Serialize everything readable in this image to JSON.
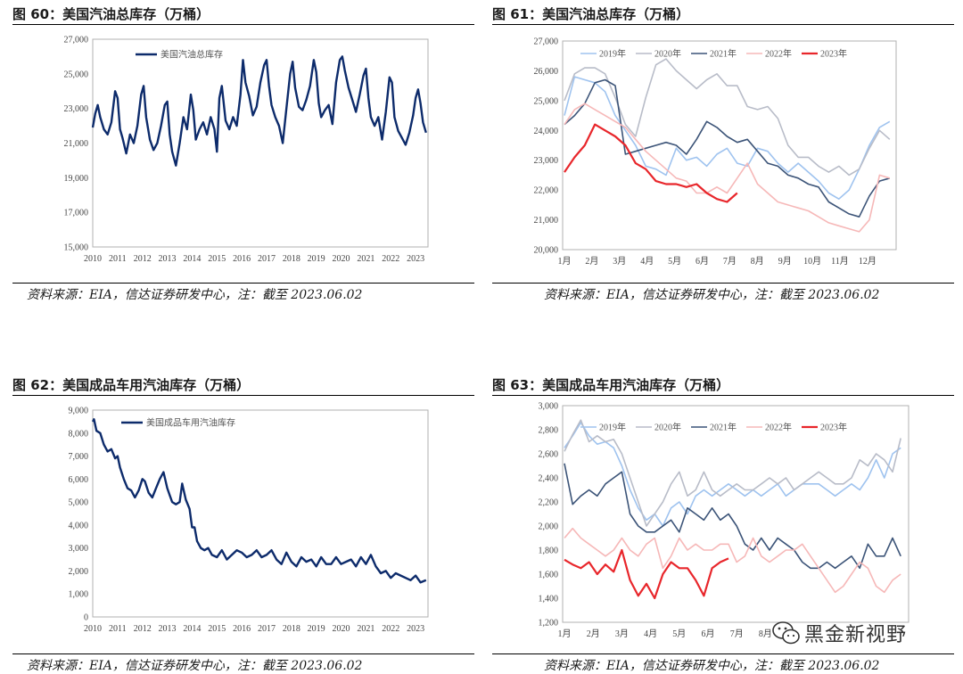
{
  "colors": {
    "navy": "#0d2b6b",
    "s2019": "#9fc3ef",
    "s2020": "#b8bcc8",
    "s2021": "#3c5478",
    "s2022": "#f6b8b8",
    "s2023": "#e8262b",
    "frame": "#b0b0b0"
  },
  "panels": [
    {
      "title": "图 60：美国汽油总库存（万桶）",
      "source": "资料来源：EIA，信达证券研发中心，注：截至 2023.06.02"
    },
    {
      "title": "图 61：美国汽油总库存（万桶）",
      "source": "资料来源：EIA，信达证券研发中心，注：截至 2023.06.02"
    },
    {
      "title": "图 62：美国成品车用汽油库存（万桶）",
      "source": "资料来源：EIA，信达证券研发中心，注：截至 2023.06.02"
    },
    {
      "title": "图 63：美国成品车用汽油库存（万桶）",
      "source": "资料来源：EIA，信达证券研发中心，注：截至 2023.06.02"
    }
  ],
  "watermark": "黑金新视野",
  "chart_data": [
    {
      "type": "line",
      "title": "图 60：美国汽油总库存（万桶）",
      "legend": "美国汽油总库存",
      "ylim": [
        15000,
        27000
      ],
      "yticks": [
        "27,000",
        "25,000",
        "23,000",
        "21,000",
        "19,000",
        "17,000",
        "15,000"
      ],
      "xticks": [
        "2010",
        "2011",
        "2012",
        "2013",
        "2014",
        "2015",
        "2016",
        "2017",
        "2018",
        "2019",
        "2020",
        "2021",
        "2022",
        "2023"
      ],
      "xlim": [
        2010,
        2023.5
      ],
      "series": [
        {
          "name": "美国汽油总库存",
          "x": [
            2010.0,
            2010.1,
            2010.2,
            2010.3,
            2010.45,
            2010.6,
            2010.75,
            2010.9,
            2011.0,
            2011.1,
            2011.2,
            2011.35,
            2011.5,
            2011.65,
            2011.8,
            2011.95,
            2012.05,
            2012.15,
            2012.3,
            2012.45,
            2012.6,
            2012.75,
            2012.9,
            2013.0,
            2013.1,
            2013.2,
            2013.35,
            2013.5,
            2013.65,
            2013.8,
            2013.95,
            2014.05,
            2014.15,
            2014.3,
            2014.45,
            2014.6,
            2014.75,
            2014.9,
            2015.0,
            2015.1,
            2015.2,
            2015.35,
            2015.5,
            2015.65,
            2015.8,
            2015.95,
            2016.05,
            2016.15,
            2016.3,
            2016.45,
            2016.6,
            2016.75,
            2016.9,
            2017.0,
            2017.1,
            2017.2,
            2017.35,
            2017.5,
            2017.65,
            2017.8,
            2017.95,
            2018.05,
            2018.15,
            2018.3,
            2018.45,
            2018.6,
            2018.75,
            2018.9,
            2019.0,
            2019.1,
            2019.2,
            2019.35,
            2019.5,
            2019.65,
            2019.8,
            2019.95,
            2020.05,
            2020.15,
            2020.3,
            2020.45,
            2020.6,
            2020.75,
            2020.9,
            2021.0,
            2021.1,
            2021.2,
            2021.35,
            2021.5,
            2021.65,
            2021.8,
            2021.95,
            2022.05,
            2022.15,
            2022.3,
            2022.45,
            2022.6,
            2022.75,
            2022.9,
            2023.0,
            2023.1,
            2023.2,
            2023.3,
            2023.42
          ],
          "values": [
            21900,
            22700,
            23200,
            22500,
            21800,
            21500,
            22200,
            24000,
            23600,
            21800,
            21300,
            20400,
            21500,
            21000,
            22000,
            23800,
            24300,
            22500,
            21200,
            20600,
            21000,
            22000,
            23200,
            23400,
            21500,
            20500,
            19700,
            21000,
            22500,
            21800,
            23800,
            22900,
            21200,
            21800,
            22200,
            21500,
            22500,
            21800,
            20500,
            23600,
            24300,
            22300,
            21800,
            22500,
            22000,
            23800,
            25800,
            24500,
            23700,
            22600,
            23100,
            24500,
            25500,
            25800,
            24300,
            23200,
            22500,
            22000,
            21000,
            23000,
            25000,
            25700,
            24200,
            23100,
            22900,
            23500,
            24300,
            25800,
            25100,
            23300,
            22500,
            22900,
            23200,
            22100,
            24500,
            25800,
            26000,
            25200,
            24200,
            23500,
            22800,
            23800,
            24900,
            25300,
            23600,
            22500,
            22000,
            22500,
            21200,
            22800,
            24800,
            24500,
            22500,
            21700,
            21300,
            20900,
            21600,
            22600,
            23600,
            24100,
            23300,
            22200,
            21600
          ]
        }
      ]
    },
    {
      "type": "line",
      "title": "图 61：美国汽油总库存（万桶）",
      "ylim": [
        20000,
        27000
      ],
      "yticks": [
        "27,000",
        "26,000",
        "25,000",
        "24,000",
        "23,000",
        "22,000",
        "21,000",
        "20,000"
      ],
      "xticks": [
        "1月",
        "2月",
        "3月",
        "4月",
        "5月",
        "6月",
        "7月",
        "8月",
        "9月",
        "10月",
        "11月",
        "12月"
      ],
      "series": [
        {
          "name": "2019年",
          "color": "#9fc3ef",
          "values": [
            24500,
            25800,
            25700,
            25600,
            25300,
            24500,
            24000,
            23500,
            22800,
            22700,
            22500,
            23400,
            23000,
            23100,
            22800,
            23200,
            23400,
            22900,
            22800,
            23400,
            23300,
            22900,
            22600,
            22900,
            22600,
            22300,
            21900,
            21700,
            22000,
            22700,
            23500,
            24100,
            24300
          ]
        },
        {
          "name": "2020年",
          "color": "#b8bcc8",
          "values": [
            25000,
            25900,
            26100,
            26100,
            25900,
            25100,
            24200,
            23800,
            25100,
            26200,
            26400,
            26000,
            25700,
            25400,
            25700,
            25900,
            25500,
            25500,
            24800,
            24700,
            24800,
            24400,
            23500,
            23100,
            23100,
            22800,
            22600,
            22800,
            22500,
            22700,
            23400,
            24000,
            23700
          ]
        },
        {
          "name": "2021年",
          "color": "#3c5478",
          "values": [
            24200,
            24500,
            24900,
            25600,
            25700,
            25500,
            23200,
            23300,
            23400,
            23500,
            23600,
            23500,
            23200,
            23700,
            24300,
            24100,
            23800,
            23600,
            23700,
            23300,
            22900,
            22800,
            22500,
            22400,
            22200,
            22100,
            21600,
            21400,
            21200,
            21100,
            21800,
            22300,
            22400
          ]
        },
        {
          "name": "2022年",
          "color": "#f6b8b8",
          "values": [
            24200,
            24700,
            24900,
            24700,
            24500,
            24300,
            24100,
            23700,
            23300,
            23000,
            22700,
            22400,
            22300,
            21900,
            21900,
            22100,
            21900,
            22400,
            22900,
            22200,
            21900,
            21600,
            21500,
            21400,
            21300,
            21100,
            20900,
            20800,
            20700,
            20600,
            21000,
            22500,
            22400
          ]
        },
        {
          "name": "2023年",
          "color": "#e8262b",
          "values": [
            22600,
            23100,
            23500,
            24200,
            24000,
            23800,
            23500,
            22900,
            22700,
            22300,
            22200,
            22200,
            22100,
            22200,
            21900,
            21700,
            21600,
            21900
          ]
        }
      ]
    },
    {
      "type": "line",
      "title": "图 62：美国成品车用汽油库存（万桶）",
      "legend": "美国成品车用汽油库存",
      "ylim": [
        0,
        9000
      ],
      "yticks": [
        "9,000",
        "8,000",
        "7,000",
        "6,000",
        "5,000",
        "4,000",
        "3,000",
        "2,000",
        "1,000",
        "0"
      ],
      "xticks": [
        "2010",
        "2011",
        "2012",
        "2013",
        "2014",
        "2015",
        "2016",
        "2017",
        "2018",
        "2019",
        "2020",
        "2021",
        "2022",
        "2023"
      ],
      "xlim": [
        2010,
        2023.5
      ],
      "series": [
        {
          "name": "美国成品车用汽油库存",
          "x": [
            2010.0,
            2010.05,
            2010.15,
            2010.3,
            2010.45,
            2010.6,
            2010.75,
            2010.9,
            2011.0,
            2011.1,
            2011.25,
            2011.4,
            2011.55,
            2011.7,
            2011.85,
            2012.0,
            2012.1,
            2012.25,
            2012.4,
            2012.55,
            2012.7,
            2012.85,
            2013.0,
            2013.1,
            2013.2,
            2013.35,
            2013.5,
            2013.6,
            2013.75,
            2013.9,
            2014.0,
            2014.1,
            2014.2,
            2014.35,
            2014.5,
            2014.65,
            2014.8,
            2015.0,
            2015.2,
            2015.4,
            2015.6,
            2015.8,
            2016.0,
            2016.2,
            2016.4,
            2016.6,
            2016.8,
            2017.0,
            2017.2,
            2017.4,
            2017.6,
            2017.8,
            2018.0,
            2018.2,
            2018.4,
            2018.6,
            2018.8,
            2019.0,
            2019.2,
            2019.4,
            2019.6,
            2019.8,
            2020.0,
            2020.2,
            2020.4,
            2020.6,
            2020.8,
            2021.0,
            2021.2,
            2021.4,
            2021.6,
            2021.8,
            2022.0,
            2022.2,
            2022.4,
            2022.6,
            2022.8,
            2023.0,
            2023.2,
            2023.42
          ],
          "values": [
            8500,
            8600,
            8100,
            8000,
            7500,
            7200,
            7300,
            6900,
            7000,
            6500,
            6000,
            5600,
            5500,
            5200,
            5500,
            6000,
            5900,
            5400,
            5200,
            5600,
            6000,
            6300,
            5600,
            5300,
            5000,
            4900,
            5000,
            5800,
            5100,
            4700,
            3900,
            3900,
            3300,
            3000,
            2900,
            3000,
            2700,
            2600,
            2900,
            2500,
            2700,
            2900,
            2800,
            2600,
            2700,
            2900,
            2600,
            2700,
            2900,
            2500,
            2300,
            2800,
            2400,
            2200,
            2600,
            2400,
            2500,
            2200,
            2600,
            2300,
            2300,
            2600,
            2300,
            2400,
            2500,
            2200,
            2600,
            2300,
            2700,
            2200,
            1900,
            2000,
            1700,
            1900,
            1800,
            1700,
            1600,
            1800,
            1500,
            1600
          ]
        }
      ]
    },
    {
      "type": "line",
      "title": "图 63：美国成品车用汽油库存（万桶）",
      "ylim": [
        1200,
        3000
      ],
      "yticks": [
        "3,000",
        "2,800",
        "2,600",
        "2,400",
        "2,200",
        "2,000",
        "1,800",
        "1,600",
        "1,400",
        "1,200"
      ],
      "xticks": [
        "1月",
        "2月",
        "3月",
        "4月",
        "5月",
        "6月",
        "7月",
        "8月"
      ],
      "series": [
        {
          "name": "2019年",
          "color": "#9fc3ef",
          "values": [
            2650,
            2750,
            2860,
            2750,
            2680,
            2700,
            2650,
            2500,
            2300,
            2150,
            2050,
            2100,
            2000,
            2150,
            2200,
            2100,
            2250,
            2300,
            2250,
            2300,
            2350,
            2300,
            2250,
            2300,
            2250,
            2300,
            2350,
            2250,
            2300,
            2350,
            2350,
            2350,
            2300,
            2250,
            2300,
            2350,
            2300,
            2400,
            2550,
            2400,
            2600,
            2650
          ]
        },
        {
          "name": "2020年",
          "color": "#b8bcc8",
          "values": [
            2620,
            2760,
            2880,
            2700,
            2750,
            2700,
            2720,
            2600,
            2400,
            2200,
            2000,
            2100,
            2200,
            2350,
            2450,
            2250,
            2300,
            2450,
            2300,
            2250,
            2300,
            2350,
            2300,
            2300,
            2350,
            2400,
            2350,
            2400,
            2300,
            2350,
            2400,
            2450,
            2400,
            2350,
            2350,
            2400,
            2550,
            2500,
            2600,
            2550,
            2450,
            2730
          ]
        },
        {
          "name": "2021年",
          "color": "#3c5478",
          "values": [
            2520,
            2180,
            2250,
            2300,
            2250,
            2350,
            2400,
            2450,
            2100,
            2000,
            1950,
            1950,
            2000,
            2050,
            1950,
            2150,
            2100,
            2050,
            2150,
            2050,
            2100,
            2000,
            1850,
            1800,
            1900,
            1800,
            1900,
            1850,
            1800,
            1700,
            1650,
            1650,
            1700,
            1650,
            1700,
            1750,
            1650,
            1850,
            1750,
            1750,
            1900,
            1750
          ]
        },
        {
          "name": "2022年",
          "color": "#f6b8b8",
          "values": [
            1900,
            1980,
            1900,
            1850,
            1800,
            1750,
            1800,
            1900,
            1800,
            1750,
            1850,
            1900,
            1650,
            1750,
            1900,
            1800,
            1850,
            1800,
            1800,
            1850,
            1850,
            1700,
            1750,
            1900,
            1750,
            1700,
            1750,
            1800,
            1800,
            1850,
            1750,
            1650,
            1550,
            1450,
            1500,
            1600,
            1700,
            1650,
            1500,
            1450,
            1550,
            1600
          ]
        },
        {
          "name": "2023年",
          "color": "#e8262b",
          "values": [
            1720,
            1680,
            1650,
            1700,
            1600,
            1680,
            1620,
            1800,
            1550,
            1420,
            1520,
            1400,
            1600,
            1700,
            1650,
            1650,
            1550,
            1420,
            1650,
            1700,
            1730
          ]
        }
      ]
    }
  ]
}
